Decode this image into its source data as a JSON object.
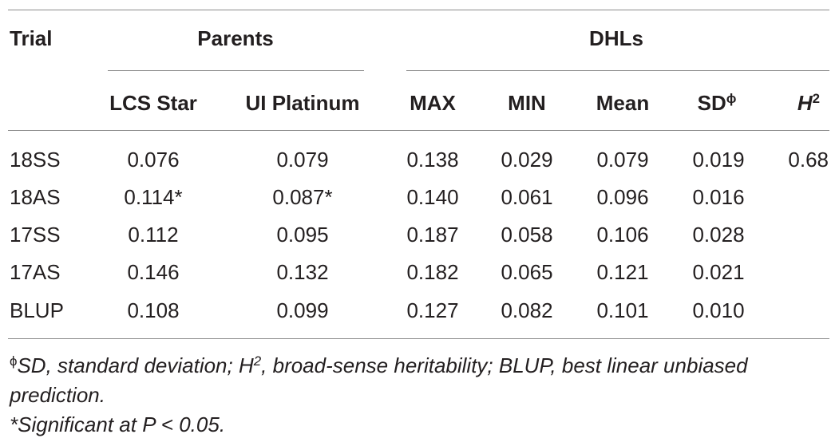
{
  "table": {
    "header_top": {
      "trial": "Trial",
      "parents": "Parents",
      "dhls": "DHLs"
    },
    "columns": {
      "lcs_star": "LCS Star",
      "ui_platinum": "UI Platinum",
      "max": "MAX",
      "min": "MIN",
      "mean": "Mean",
      "sd": "SD",
      "sd_sup": "ϕ",
      "h": "H",
      "h_sup": "2"
    },
    "rows": [
      {
        "trial": "18SS",
        "lcs_star": "0.076",
        "ui_platinum": "0.079",
        "max": "0.138",
        "min": "0.029",
        "mean": "0.079",
        "sd": "0.019",
        "h2": "0.68"
      },
      {
        "trial": "18AS",
        "lcs_star": "0.114*",
        "ui_platinum": "0.087*",
        "max": "0.140",
        "min": "0.061",
        "mean": "0.096",
        "sd": "0.016",
        "h2": ""
      },
      {
        "trial": "17SS",
        "lcs_star": "0.112",
        "ui_platinum": "0.095",
        "max": "0.187",
        "min": "0.058",
        "mean": "0.106",
        "sd": "0.028",
        "h2": ""
      },
      {
        "trial": "17AS",
        "lcs_star": "0.146",
        "ui_platinum": "0.132",
        "max": "0.182",
        "min": "0.065",
        "mean": "0.121",
        "sd": "0.021",
        "h2": ""
      },
      {
        "trial": "BLUP",
        "lcs_star": "0.108",
        "ui_platinum": "0.099",
        "max": "0.127",
        "min": "0.082",
        "mean": "0.101",
        "sd": "0.010",
        "h2": ""
      }
    ]
  },
  "footnotes": {
    "line1_sup": "ϕ",
    "line1_a": "SD, standard deviation; H",
    "line1_sup2": "2",
    "line1_b": ", broad-sense heritability; BLUP, best linear unbiased",
    "line2": "prediction.",
    "line3": "*Significant at P < 0.05."
  }
}
